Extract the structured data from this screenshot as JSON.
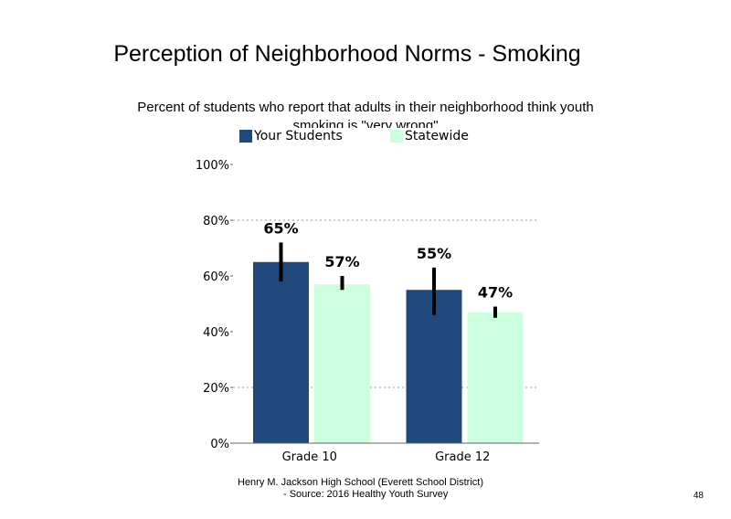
{
  "chart_data": {
    "type": "bar",
    "title": "Perception of Neighborhood Norms - Smoking",
    "subtitle": "Percent of students who report that adults in their neighborhood think youth smoking is \"very wrong\"",
    "categories": [
      "Grade 10",
      "Grade 12"
    ],
    "series": [
      {
        "name": "Your Students",
        "color": "#1F497D",
        "values": [
          65,
          55
        ],
        "labels": [
          "65%",
          "55%"
        ],
        "error": [
          [
            58,
            72
          ],
          [
            46,
            63
          ]
        ]
      },
      {
        "name": "Statewide",
        "color": "#CCFFDD",
        "values": [
          57,
          47
        ],
        "labels": [
          "57%",
          "47%"
        ],
        "error": [
          [
            55,
            60
          ],
          [
            45,
            49
          ]
        ]
      }
    ],
    "yticks": [
      "0%",
      "20%",
      "40%",
      "60%",
      "80%",
      "100%"
    ],
    "ylim": [
      0,
      100
    ],
    "grid": "dotted at 20 and 80",
    "legend": "top"
  },
  "footer": {
    "line1": "Henry M. Jackson High School (Everett School District)",
    "line2": "- Source: 2016 Healthy Youth Survey"
  },
  "page_number": "48"
}
